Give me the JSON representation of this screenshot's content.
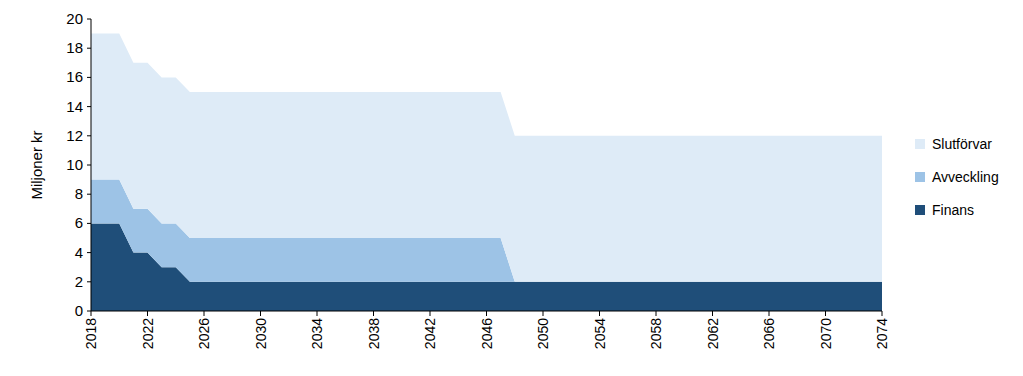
{
  "chart_data": {
    "type": "area",
    "stacked": true,
    "y_label": "Miljoner kr",
    "legend": "right",
    "grid": false,
    "x": [
      2018,
      2019,
      2020,
      2021,
      2022,
      2023,
      2024,
      2025,
      2026,
      2027,
      2028,
      2029,
      2030,
      2031,
      2032,
      2033,
      2034,
      2035,
      2036,
      2037,
      2038,
      2039,
      2040,
      2041,
      2042,
      2043,
      2044,
      2045,
      2046,
      2047,
      2048,
      2049,
      2050,
      2051,
      2052,
      2053,
      2054,
      2055,
      2056,
      2057,
      2058,
      2059,
      2060,
      2061,
      2062,
      2063,
      2064,
      2065,
      2066,
      2067,
      2068,
      2069,
      2070,
      2071,
      2072,
      2073,
      2074
    ],
    "xlim": [
      2018,
      2074
    ],
    "xticks": [
      2018,
      2022,
      2026,
      2030,
      2034,
      2038,
      2042,
      2046,
      2050,
      2054,
      2058,
      2062,
      2066,
      2070,
      2074
    ],
    "ylim": [
      0,
      20
    ],
    "yticks": [
      0,
      2,
      4,
      6,
      8,
      10,
      12,
      14,
      16,
      18,
      20
    ],
    "series": [
      {
        "name": "Finans",
        "color": "#1f4e79",
        "values": [
          6,
          6,
          6,
          4,
          4,
          3,
          3,
          2,
          2,
          2,
          2,
          2,
          2,
          2,
          2,
          2,
          2,
          2,
          2,
          2,
          2,
          2,
          2,
          2,
          2,
          2,
          2,
          2,
          2,
          2,
          2,
          2,
          2,
          2,
          2,
          2,
          2,
          2,
          2,
          2,
          2,
          2,
          2,
          2,
          2,
          2,
          2,
          2,
          2,
          2,
          2,
          2,
          2,
          2,
          2,
          2,
          2
        ]
      },
      {
        "name": "Avveckling",
        "color": "#9dc3e6",
        "values": [
          3,
          3,
          3,
          3,
          3,
          3,
          3,
          3,
          3,
          3,
          3,
          3,
          3,
          3,
          3,
          3,
          3,
          3,
          3,
          3,
          3,
          3,
          3,
          3,
          3,
          3,
          3,
          3,
          3,
          3,
          0,
          0,
          0,
          0,
          0,
          0,
          0,
          0,
          0,
          0,
          0,
          0,
          0,
          0,
          0,
          0,
          0,
          0,
          0,
          0,
          0,
          0,
          0,
          0,
          0,
          0,
          0
        ]
      },
      {
        "name": "Slutförvar",
        "color": "#deebf7",
        "values": [
          10,
          10,
          10,
          10,
          10,
          10,
          10,
          10,
          10,
          10,
          10,
          10,
          10,
          10,
          10,
          10,
          10,
          10,
          10,
          10,
          10,
          10,
          10,
          10,
          10,
          10,
          10,
          10,
          10,
          10,
          10,
          10,
          10,
          10,
          10,
          10,
          10,
          10,
          10,
          10,
          10,
          10,
          10,
          10,
          10,
          10,
          10,
          10,
          10,
          10,
          10,
          10,
          10,
          10,
          10,
          10,
          10
        ]
      }
    ]
  }
}
